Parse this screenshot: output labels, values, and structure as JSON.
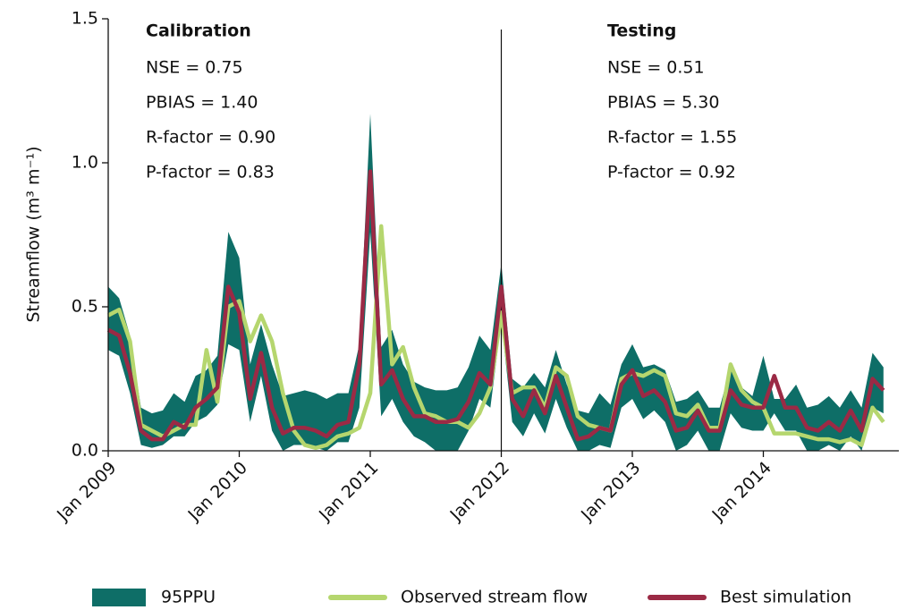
{
  "chart_data": {
    "type": "band-line",
    "y_label": "Streamflow (m³ m⁻¹)",
    "x": [
      "2009-01",
      "2009-02",
      "2009-03",
      "2009-04",
      "2009-05",
      "2009-06",
      "2009-07",
      "2009-08",
      "2009-09",
      "2009-10",
      "2009-11",
      "2009-12",
      "2010-01",
      "2010-02",
      "2010-03",
      "2010-04",
      "2010-05",
      "2010-06",
      "2010-07",
      "2010-08",
      "2010-09",
      "2010-10",
      "2010-11",
      "2010-12",
      "2011-01",
      "2011-02",
      "2011-03",
      "2011-04",
      "2011-05",
      "2011-06",
      "2011-07",
      "2011-08",
      "2011-09",
      "2011-10",
      "2011-11",
      "2011-12",
      "2012-01",
      "2012-02",
      "2012-03",
      "2012-04",
      "2012-05",
      "2012-06",
      "2012-07",
      "2012-08",
      "2012-09",
      "2012-10",
      "2012-11",
      "2012-12",
      "2013-01",
      "2013-02",
      "2013-03",
      "2013-04",
      "2013-05",
      "2013-06",
      "2013-07",
      "2013-08",
      "2013-09",
      "2013-10",
      "2013-11",
      "2013-12",
      "2014-01",
      "2014-02",
      "2014-03",
      "2014-04",
      "2014-05",
      "2014-06",
      "2014-07",
      "2014-08",
      "2014-09",
      "2014-10",
      "2014-11",
      "2014-12"
    ],
    "band": {
      "name": "95PPU",
      "color": "#0e6e67",
      "upper": [
        0.57,
        0.53,
        0.4,
        0.15,
        0.13,
        0.14,
        0.2,
        0.17,
        0.26,
        0.28,
        0.33,
        0.76,
        0.67,
        0.3,
        0.44,
        0.3,
        0.19,
        0.2,
        0.21,
        0.2,
        0.18,
        0.2,
        0.2,
        0.37,
        1.17,
        0.36,
        0.42,
        0.3,
        0.24,
        0.22,
        0.21,
        0.21,
        0.22,
        0.29,
        0.4,
        0.35,
        0.65,
        0.25,
        0.22,
        0.27,
        0.22,
        0.35,
        0.23,
        0.14,
        0.13,
        0.2,
        0.16,
        0.3,
        0.37,
        0.29,
        0.3,
        0.28,
        0.17,
        0.18,
        0.21,
        0.15,
        0.15,
        0.29,
        0.22,
        0.19,
        0.33,
        0.18,
        0.18,
        0.23,
        0.15,
        0.16,
        0.19,
        0.15,
        0.21,
        0.15,
        0.34,
        0.29
      ],
      "lower": [
        0.35,
        0.33,
        0.2,
        0.02,
        0.01,
        0.02,
        0.05,
        0.05,
        0.1,
        0.12,
        0.16,
        0.37,
        0.35,
        0.1,
        0.26,
        0.07,
        0.0,
        0.02,
        0.02,
        0.01,
        0.0,
        0.03,
        0.03,
        0.15,
        0.76,
        0.12,
        0.18,
        0.1,
        0.05,
        0.03,
        0.0,
        0.0,
        0.0,
        0.07,
        0.18,
        0.15,
        0.45,
        0.1,
        0.05,
        0.13,
        0.06,
        0.18,
        0.08,
        0.0,
        0.0,
        0.02,
        0.01,
        0.15,
        0.18,
        0.11,
        0.14,
        0.1,
        0.0,
        0.02,
        0.07,
        0.0,
        0.0,
        0.13,
        0.08,
        0.07,
        0.07,
        0.13,
        0.07,
        0.07,
        0.0,
        0.0,
        0.02,
        0.0,
        0.05,
        0.0,
        0.15,
        0.13
      ]
    },
    "series": [
      {
        "name": "Observed stream flow",
        "color": "#b5d66e",
        "values": [
          0.47,
          0.49,
          0.38,
          0.09,
          0.07,
          0.05,
          0.07,
          0.09,
          0.09,
          0.35,
          0.17,
          0.5,
          0.52,
          0.38,
          0.47,
          0.38,
          0.2,
          0.07,
          0.02,
          0.01,
          0.02,
          0.05,
          0.06,
          0.08,
          0.2,
          0.78,
          0.3,
          0.36,
          0.22,
          0.13,
          0.12,
          0.1,
          0.1,
          0.08,
          0.13,
          0.22,
          0.48,
          0.2,
          0.22,
          0.22,
          0.15,
          0.29,
          0.26,
          0.12,
          0.09,
          0.08,
          0.07,
          0.25,
          0.27,
          0.26,
          0.28,
          0.26,
          0.13,
          0.12,
          0.16,
          0.08,
          0.08,
          0.3,
          0.21,
          0.17,
          0.15,
          0.06,
          0.06,
          0.06,
          0.05,
          0.04,
          0.04,
          0.03,
          0.04,
          0.02,
          0.15,
          0.1
        ]
      },
      {
        "name": "Best simulation",
        "color": "#9b2a45",
        "values": [
          0.42,
          0.4,
          0.27,
          0.07,
          0.04,
          0.04,
          0.1,
          0.08,
          0.15,
          0.18,
          0.22,
          0.57,
          0.48,
          0.18,
          0.34,
          0.15,
          0.06,
          0.08,
          0.08,
          0.07,
          0.05,
          0.09,
          0.1,
          0.3,
          0.97,
          0.23,
          0.28,
          0.18,
          0.12,
          0.12,
          0.1,
          0.1,
          0.11,
          0.17,
          0.27,
          0.23,
          0.57,
          0.18,
          0.12,
          0.21,
          0.13,
          0.26,
          0.15,
          0.04,
          0.05,
          0.08,
          0.07,
          0.23,
          0.28,
          0.19,
          0.21,
          0.17,
          0.07,
          0.08,
          0.14,
          0.07,
          0.07,
          0.21,
          0.16,
          0.15,
          0.15,
          0.26,
          0.15,
          0.15,
          0.08,
          0.07,
          0.1,
          0.07,
          0.14,
          0.07,
          0.25,
          0.21
        ]
      }
    ],
    "xlim": [
      "2009-01",
      "2015-01"
    ],
    "xticks": [
      {
        "value": "2009-01",
        "label": "Jan 2009"
      },
      {
        "value": "2010-01",
        "label": "Jan 2010"
      },
      {
        "value": "2011-01",
        "label": "Jan 2011"
      },
      {
        "value": "2012-01",
        "label": "Jan 2012"
      },
      {
        "value": "2013-01",
        "label": "Jan 2013"
      },
      {
        "value": "2014-01",
        "label": "Jan 2014"
      }
    ],
    "ylim": [
      0,
      1.5
    ],
    "yticks": [
      {
        "value": 0,
        "label": "0.0"
      },
      0.5,
      {
        "value": 1,
        "label": "1.0"
      },
      1.5
    ],
    "divider_x": "2012-01",
    "annotations": [
      {
        "title": "Calibration",
        "lines": [
          "NSE = 0.75",
          "PBIAS = 1.40",
          "R-factor = 0.90",
          "P-factor = 0.83"
        ]
      },
      {
        "title": "Testing",
        "lines": [
          "NSE = 0.51",
          "PBIAS = 5.30",
          "R-factor = 1.55",
          "P-factor = 0.92"
        ]
      }
    ],
    "legend": "bottom"
  }
}
